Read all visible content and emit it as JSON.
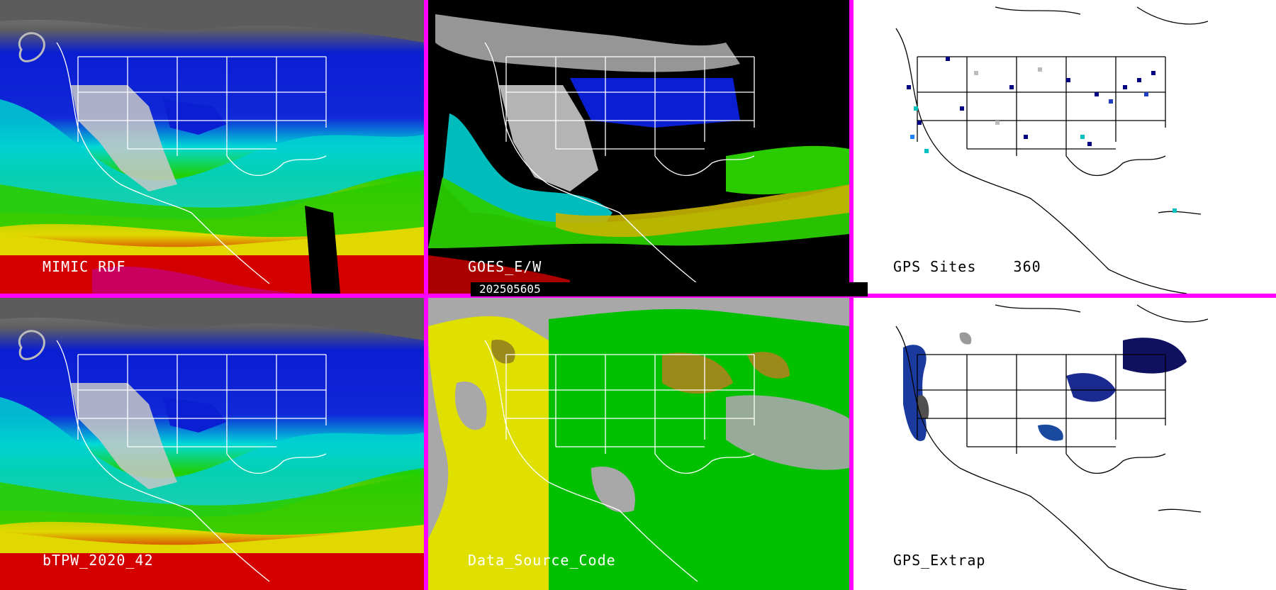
{
  "panels": [
    {
      "id": "mimic",
      "label": "MIMIC RDF"
    },
    {
      "id": "goes",
      "label": "GOES_E/W",
      "timestamp": "202505605"
    },
    {
      "id": "gps_sites",
      "label": "GPS Sites",
      "count": "360"
    },
    {
      "id": "btpw",
      "label": "bTPW_2020_42"
    },
    {
      "id": "source",
      "label": "Data_Source_Code"
    },
    {
      "id": "gps_extrap",
      "label": "GPS_Extrap"
    }
  ],
  "colors": {
    "divider": "#ff00ff",
    "tpw_red": "#d40000",
    "tpw_yellow": "#e6e600",
    "tpw_green": "#28c800",
    "tpw_cyan": "#00e0e0",
    "tpw_blue": "#0a1ed2",
    "tpw_navy": "#000080",
    "cloud_gray": "#a8a8a8",
    "source_yellow": "#e0e000",
    "source_green": "#00c000",
    "source_olive": "#9a8a1a",
    "source_gray": "#a8a8a8"
  }
}
